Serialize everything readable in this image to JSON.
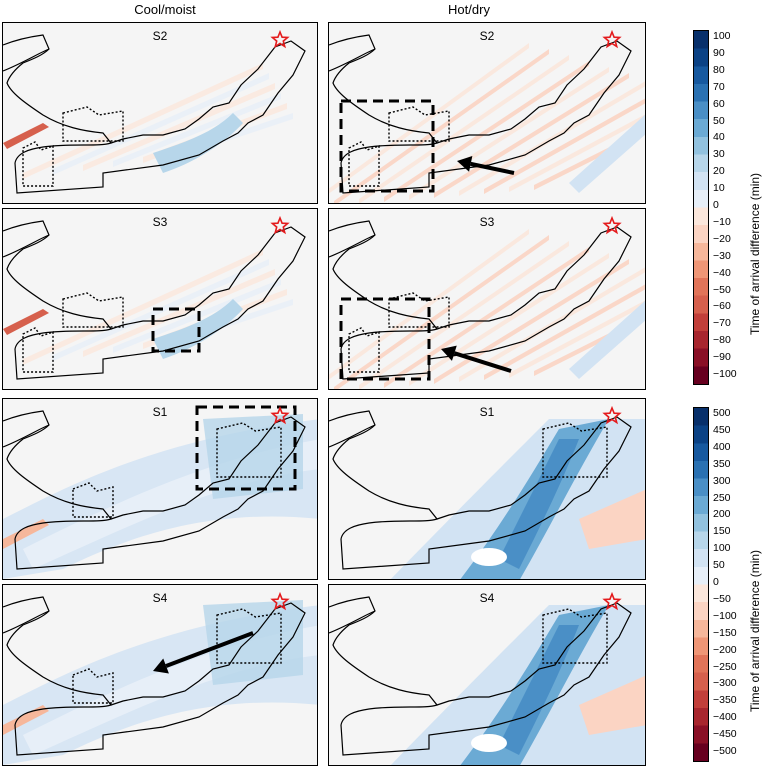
{
  "columns": [
    "Cool/moist",
    "Hot/dry"
  ],
  "panels": [
    {
      "label": "S2"
    },
    {
      "label": "S2"
    },
    {
      "label": "S3"
    },
    {
      "label": "S3"
    },
    {
      "label": "S1"
    },
    {
      "label": "S1"
    },
    {
      "label": "S4"
    },
    {
      "label": "S4"
    }
  ],
  "colorbar_top": {
    "label": "Time of arrival difference (min)",
    "ticks": [
      "100",
      "90",
      "80",
      "70",
      "60",
      "50",
      "40",
      "30",
      "20",
      "10",
      "0",
      "−10",
      "−20",
      "−30",
      "−40",
      "−50",
      "−60",
      "−70",
      "−80",
      "−90",
      "−100"
    ]
  },
  "colorbar_bottom": {
    "label": "Time of arrival difference (min)",
    "ticks": [
      "500",
      "450",
      "400",
      "350",
      "300",
      "250",
      "200",
      "150",
      "100",
      "50",
      "0",
      "−50",
      "−100",
      "−150",
      "−200",
      "−250",
      "−300",
      "−350",
      "−400",
      "−450",
      "−500"
    ]
  },
  "colors": {
    "blue_dark": "#08306b",
    "blue_mid": "#4a8fc6",
    "blue_light": "#d2e3f3",
    "neutral": "#f5f5f5",
    "red_light": "#fbd4c3",
    "red_mid": "#d6604d",
    "red_dark": "#67001f",
    "star": "#e41a1c"
  },
  "icons": [
    "star-icon",
    "arrow-icon",
    "dashed-box"
  ]
}
